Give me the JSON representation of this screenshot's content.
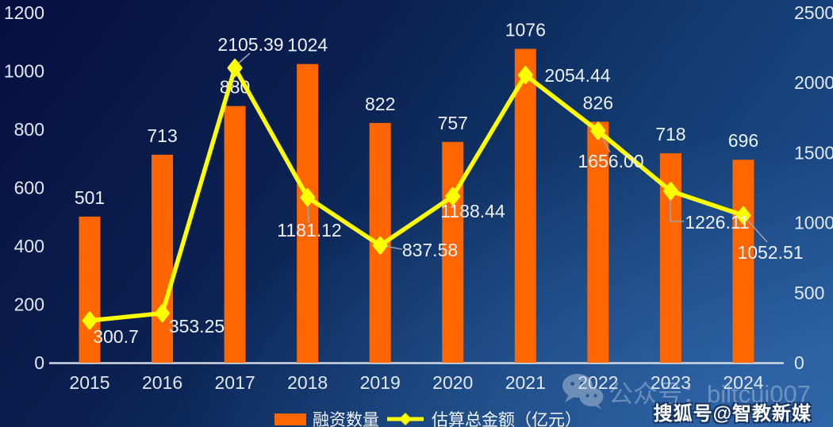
{
  "chart_data": {
    "type": "bar",
    "subtype": "bar+line combo, dual y-axis",
    "title": "",
    "xlabel": "",
    "ylabel": "",
    "grid": false,
    "legend_position": "bottom",
    "categories": [
      "2015",
      "2016",
      "2017",
      "2018",
      "2019",
      "2020",
      "2021",
      "2022",
      "2023",
      "2024"
    ],
    "series": [
      {
        "name": "融资数量",
        "type": "bar",
        "axis": "left",
        "values": [
          501,
          713,
          880,
          1024,
          822,
          757,
          1076,
          826,
          718,
          696
        ],
        "labels": [
          "501",
          "713",
          "880",
          "1024",
          "822",
          "757",
          "1076",
          "826",
          "718",
          "696"
        ]
      },
      {
        "name": "估算总金额（亿元）",
        "type": "line",
        "axis": "right",
        "values": [
          300.7,
          353.25,
          2105.39,
          1181.12,
          837.58,
          1188.44,
          2054.44,
          1656.0,
          1226.11,
          1052.51
        ],
        "labels": [
          "300.7",
          "353.25",
          "2105.39",
          "1181.12",
          "837.58",
          "1188.44",
          "2054.44",
          "1656.00",
          "1226.11",
          "1052.51"
        ]
      }
    ],
    "left_axis": {
      "min": 0,
      "max": 1200,
      "step": 200,
      "ticks": [
        "1200",
        "1000",
        "800",
        "600",
        "400",
        "200",
        "0"
      ]
    },
    "right_axis": {
      "min": 0,
      "max": 2500,
      "step": 500,
      "ticks": [
        "2500",
        "2000",
        "1500",
        "1000",
        "500",
        "0"
      ]
    }
  },
  "legend": {
    "bar_label": "融资数量",
    "line_label": "估算总金额（亿元）"
  },
  "watermarks": {
    "wechat": "公众号：biltcui007",
    "sohu": "搜狐号@智教新媒"
  },
  "colors": {
    "bar": "#ff6600",
    "line": "#ffff00",
    "data_label": "#edf1f8",
    "axis_line": "#cfd8e2",
    "leader": "#97a3b0"
  }
}
